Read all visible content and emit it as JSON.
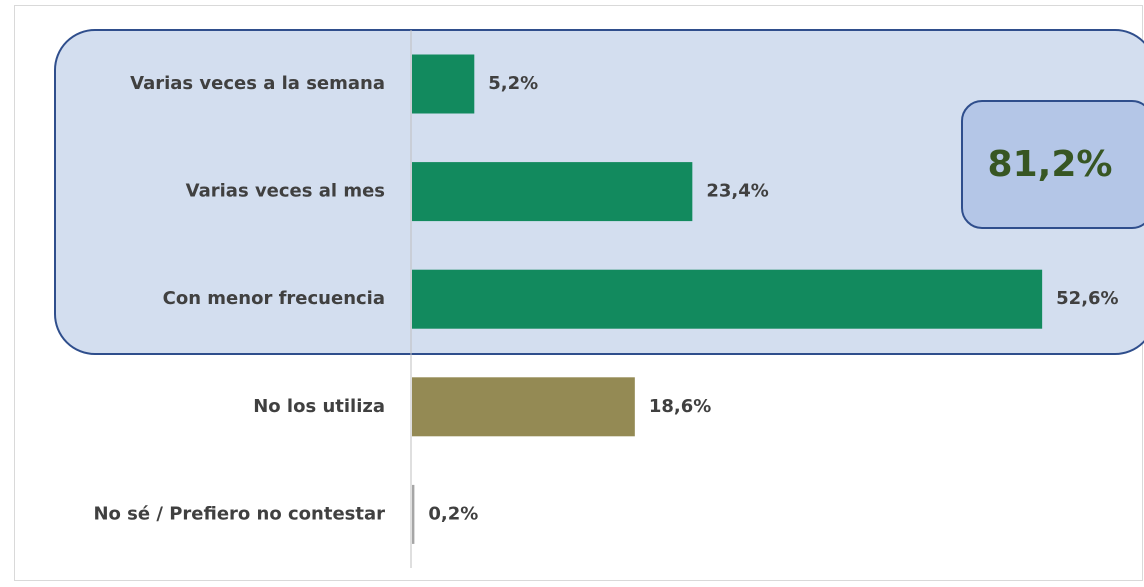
{
  "chart_data": {
    "type": "hbar",
    "categories": [
      "Varias veces a la semana",
      "Varias veces al mes",
      "Con menor frecuencia",
      "No los utiliza",
      "No sé / Prefiero no contestar"
    ],
    "values": [
      5.2,
      23.4,
      52.6,
      18.6,
      0.2
    ],
    "value_labels": [
      "5,2%",
      "23,4%",
      "52,6%",
      "18,6%",
      "0,2%"
    ],
    "colors": [
      "#128a5e",
      "#128a5e",
      "#128a5e",
      "#948a54",
      "#a6a6a6"
    ],
    "annotation": "81,2%"
  }
}
